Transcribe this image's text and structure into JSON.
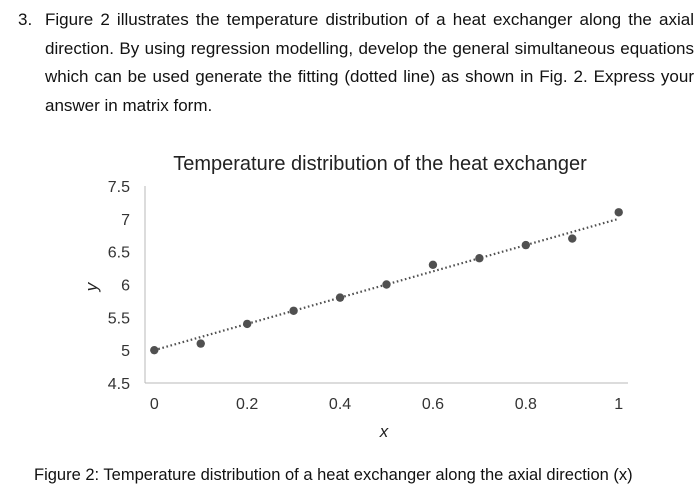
{
  "question": {
    "number": "3.",
    "text": "Figure 2 illustrates the temperature distribution of a heat exchanger along the axial direction. By using regression modelling, develop the general simultaneous equations which can be used generate the fitting (dotted line) as shown in Fig. 2. Express your answer in matrix form."
  },
  "chart_data": {
    "type": "scatter",
    "title": "Temperature distribution of the heat exchanger",
    "xlabel": "x",
    "ylabel": "y",
    "xlim": [
      -0.02,
      1.02
    ],
    "ylim": [
      4.5,
      7.5
    ],
    "x_ticks": [
      "0",
      "0.2",
      "0.4",
      "0.6",
      "0.8",
      "1"
    ],
    "y_ticks": [
      "7.5",
      "7",
      "6.5",
      "6",
      "5.5",
      "5",
      "4.5"
    ],
    "points": {
      "x": [
        0,
        0.1,
        0.2,
        0.3,
        0.4,
        0.5,
        0.6,
        0.7,
        0.8,
        0.9,
        1.0
      ],
      "y": [
        5.0,
        5.1,
        5.4,
        5.6,
        5.8,
        6.0,
        6.3,
        6.4,
        6.6,
        6.7,
        7.1
      ]
    },
    "fit_line": {
      "style": "dotted",
      "x": [
        0,
        1
      ],
      "y": [
        5.0,
        7.0
      ]
    },
    "marker_color": "#505050",
    "line_color": "#505050",
    "axis_color": "#b8b8b8",
    "grid": false
  },
  "caption": "Figure 2: Temperature distribution of a heat exchanger along the axial direction (x)"
}
